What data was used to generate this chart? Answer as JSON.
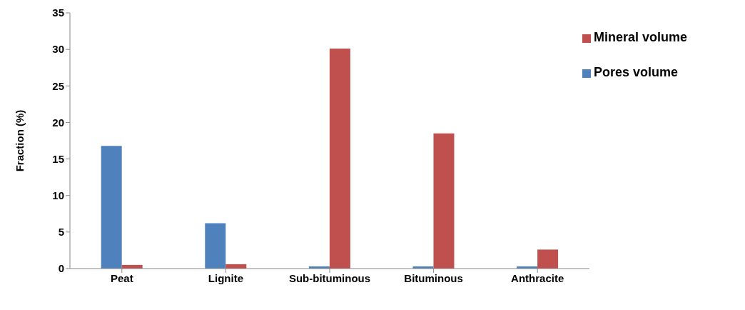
{
  "chart_data": {
    "type": "bar",
    "ylabel": "Fraction (%)",
    "categories": [
      "Peat",
      "Lignite",
      "Sub-bituminous",
      "Bituminous",
      "Anthracite"
    ],
    "series": [
      {
        "name": "Pores volume",
        "color": "#4f81bd",
        "values": [
          16.8,
          6.2,
          0.3,
          0.3,
          0.3
        ]
      },
      {
        "name": "Mineral volume",
        "color": "#c0504d",
        "values": [
          0.5,
          0.6,
          30.1,
          18.5,
          2.6
        ]
      }
    ],
    "ylim": [
      0,
      35
    ],
    "yticks": [
      0,
      5,
      10,
      15,
      20,
      25,
      30,
      35
    ],
    "grid": false,
    "legend": "top right"
  }
}
